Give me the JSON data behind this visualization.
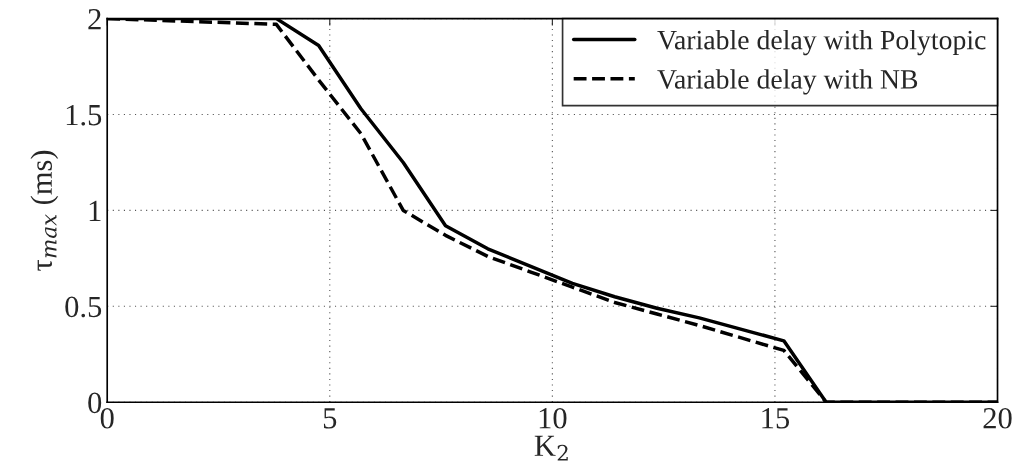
{
  "chart_data": {
    "type": "line",
    "xlabel": "K$_{2}$",
    "ylabel": "τ$_{max}$ (ms)",
    "xlim": [
      0,
      20
    ],
    "ylim": [
      0,
      2
    ],
    "xticks": [
      0,
      5,
      10,
      15,
      20
    ],
    "yticks": [
      0,
      0.5,
      1,
      1.5,
      2
    ],
    "grid": true,
    "legend": "top right",
    "series": [
      {
        "name": "Variable delay with Polytopic",
        "color": "#000000",
        "line_style": "solid",
        "x": [
          0,
          3.8,
          4.75,
          5.7,
          6.65,
          7.6,
          8.55,
          9.5,
          10.45,
          11.4,
          12.35,
          13.3,
          15.2,
          16.15,
          20
        ],
        "values": [
          2,
          2,
          1.86,
          1.53,
          1.25,
          0.92,
          0.8,
          0.71,
          0.62,
          0.55,
          0.49,
          0.44,
          0.32,
          0,
          0
        ]
      },
      {
        "name": "Variable delay with NB",
        "color": "#000000",
        "line_style": "dashed",
        "x": [
          0,
          3.8,
          4.75,
          5.7,
          6.65,
          7.6,
          8.55,
          9.5,
          10.45,
          11.4,
          12.35,
          13.3,
          15.2,
          16.15,
          20
        ],
        "values": [
          2,
          1.97,
          1.68,
          1.4,
          1.0,
          0.87,
          0.76,
          0.68,
          0.6,
          0.52,
          0.46,
          0.4,
          0.27,
          0,
          0
        ]
      }
    ]
  }
}
